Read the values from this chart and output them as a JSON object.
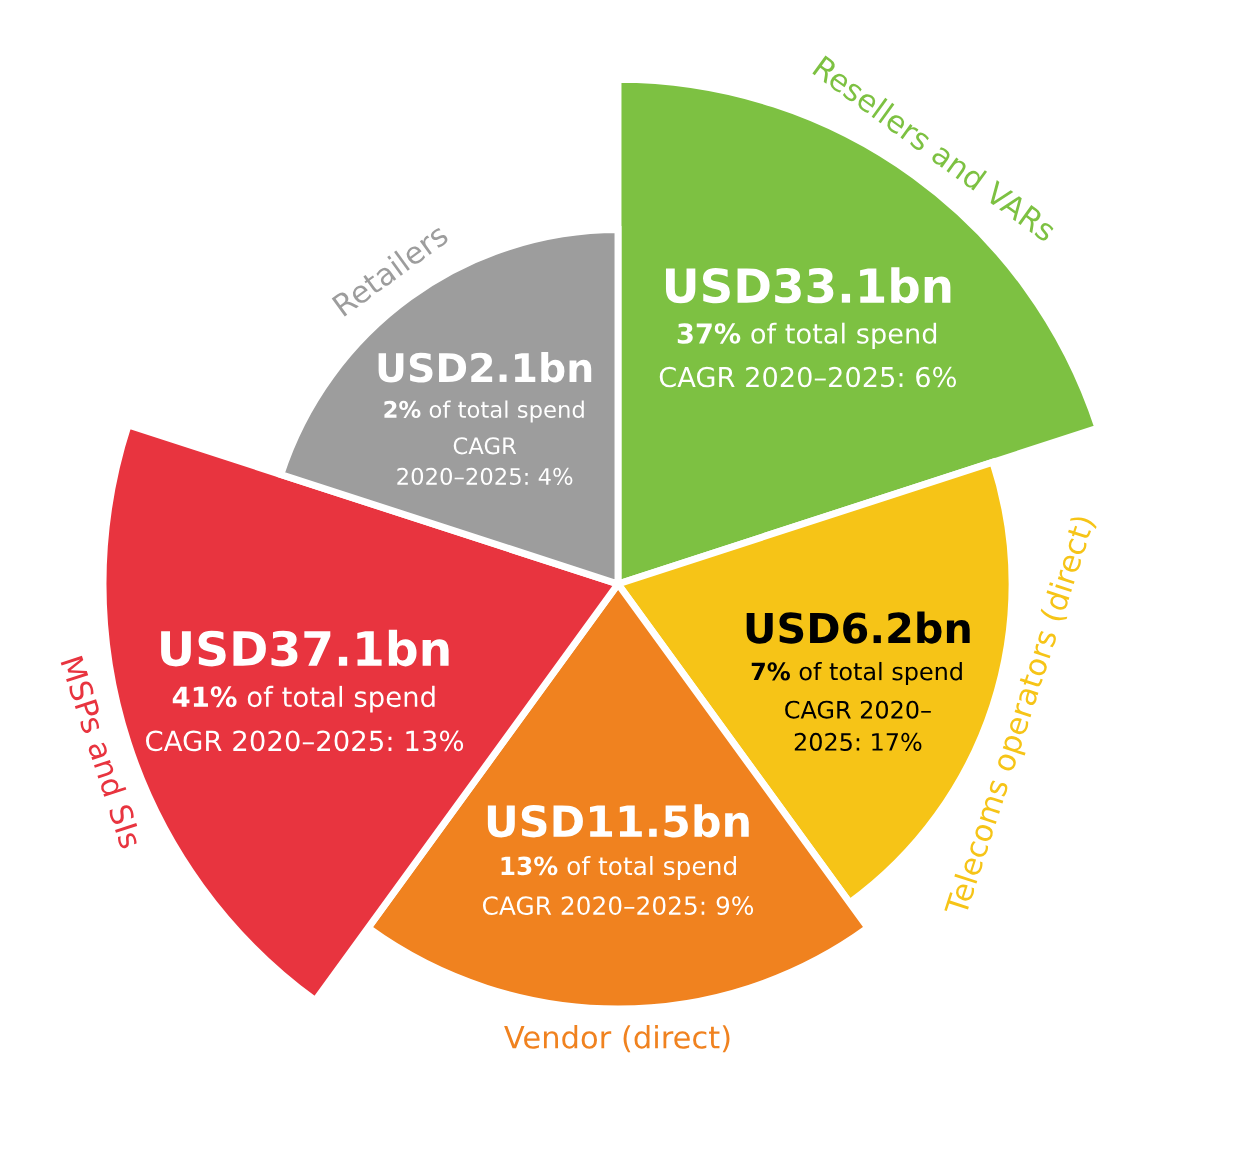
{
  "chart_data": {
    "type": "other",
    "categories": [
      "Resellers and VARs",
      "Telecoms operators (direct)",
      "Vendor (direct)",
      "MSPs and SIs",
      "Retailers"
    ],
    "values": [
      37,
      7,
      13,
      41,
      2
    ],
    "value_labels": [
      "37%",
      "7%",
      "13%",
      "41%",
      "2%"
    ],
    "colors": [
      "#7dc142",
      "#f6c417",
      "#f0821f",
      "#e8343f",
      "#9d9d9d"
    ],
    "annotations": [
      "USD33.1bn",
      "of total spend",
      "CAGR 2020–2025: 6%",
      "USD6.2bn",
      "of total spend",
      "CAGR 2020–\n2025: 17%",
      "USD11.5bn",
      "of total spend",
      "CAGR 2020–2025: 9%",
      "USD37.1bn",
      "of total spend",
      "CAGR 2020–2025: 13%",
      "USD2.1bn",
      "of total spend",
      "CAGR\n2020–2025: 4%"
    ],
    "legend": false
  }
}
